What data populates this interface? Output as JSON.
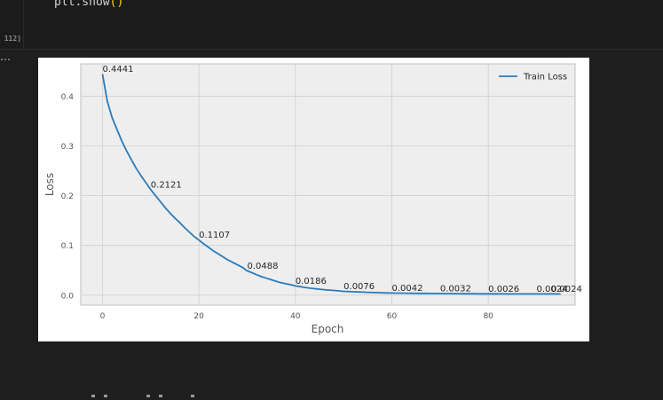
{
  "code_cell": {
    "exec_count": "112]",
    "code_text": "plt.show",
    "code_parens": "()"
  },
  "output": {
    "more_icon": "ellipsis-icon",
    "chart_data": {
      "type": "line",
      "title": "",
      "xlabel": "Epoch",
      "ylabel": "Loss",
      "xlim": [
        -4.5,
        98
      ],
      "ylim": [
        -0.02,
        0.465
      ],
      "x_ticks": [
        "0",
        "20",
        "40",
        "60",
        "80"
      ],
      "y_ticks": [
        "0.0",
        "0.1",
        "0.2",
        "0.3",
        "0.4"
      ],
      "grid": true,
      "legend_position": "top-right",
      "series": [
        {
          "name": "Train Loss",
          "color": "#2b7bba",
          "x": [
            0,
            1,
            2,
            3,
            4,
            5,
            6,
            7,
            8,
            9,
            10,
            11,
            12,
            13,
            14,
            15,
            16,
            17,
            18,
            19,
            20,
            21,
            22,
            23,
            24,
            25,
            26,
            27,
            28,
            29,
            30,
            31,
            32,
            33,
            34,
            35,
            36,
            37,
            38,
            39,
            40,
            41,
            42,
            43,
            44,
            45,
            46,
            47,
            48,
            49,
            50,
            51,
            52,
            53,
            54,
            55,
            56,
            57,
            58,
            59,
            60,
            61,
            62,
            63,
            64,
            65,
            66,
            67,
            68,
            69,
            70,
            71,
            72,
            73,
            74,
            75,
            76,
            77,
            78,
            79,
            80,
            81,
            82,
            83,
            84,
            85,
            86,
            87,
            88,
            89,
            90,
            91,
            92,
            93,
            94,
            95
          ],
          "y": [
            0.4441,
            0.39,
            0.357,
            0.333,
            0.31,
            0.29,
            0.272,
            0.255,
            0.24,
            0.226,
            0.2121,
            0.2,
            0.188,
            0.176,
            0.165,
            0.155,
            0.146,
            0.136,
            0.127,
            0.118,
            0.1107,
            0.103,
            0.096,
            0.089,
            0.083,
            0.077,
            0.071,
            0.066,
            0.061,
            0.056,
            0.0488,
            0.045,
            0.041,
            0.037,
            0.034,
            0.031,
            0.028,
            0.025,
            0.023,
            0.021,
            0.0186,
            0.017,
            0.0155,
            0.014,
            0.013,
            0.012,
            0.011,
            0.0102,
            0.0094,
            0.0085,
            0.0076,
            0.0072,
            0.0068,
            0.0064,
            0.006,
            0.0057,
            0.0054,
            0.0051,
            0.0048,
            0.0045,
            0.0042,
            0.0041,
            0.004,
            0.0039,
            0.0038,
            0.0037,
            0.0036,
            0.0035,
            0.0034,
            0.0033,
            0.0032,
            0.0032,
            0.0031,
            0.003,
            0.003,
            0.0029,
            0.0029,
            0.0028,
            0.0027,
            0.0027,
            0.0026,
            0.0026,
            0.0026,
            0.0025,
            0.0025,
            0.0025,
            0.0025,
            0.0025,
            0.0025,
            0.0025,
            0.0025,
            0.0024,
            0.0024,
            0.0024,
            0.0024,
            0.0024
          ]
        }
      ],
      "annotations": [
        {
          "x": 0,
          "y": 0.4441,
          "label": "0.4441"
        },
        {
          "x": 10,
          "y": 0.2121,
          "label": "0.2121"
        },
        {
          "x": 20,
          "y": 0.1107,
          "label": "0.1107"
        },
        {
          "x": 30,
          "y": 0.0488,
          "label": "0.0488"
        },
        {
          "x": 40,
          "y": 0.0186,
          "label": "0.0186"
        },
        {
          "x": 50,
          "y": 0.0076,
          "label": "0.0076"
        },
        {
          "x": 60,
          "y": 0.0042,
          "label": "0.0042"
        },
        {
          "x": 70,
          "y": 0.0032,
          "label": "0.0032"
        },
        {
          "x": 80,
          "y": 0.0026,
          "label": "0.0026"
        },
        {
          "x": 90,
          "y": 0.0024,
          "label": "0.0024"
        },
        {
          "x": 93,
          "y": 0.0024,
          "label": "0.0024"
        }
      ]
    }
  }
}
